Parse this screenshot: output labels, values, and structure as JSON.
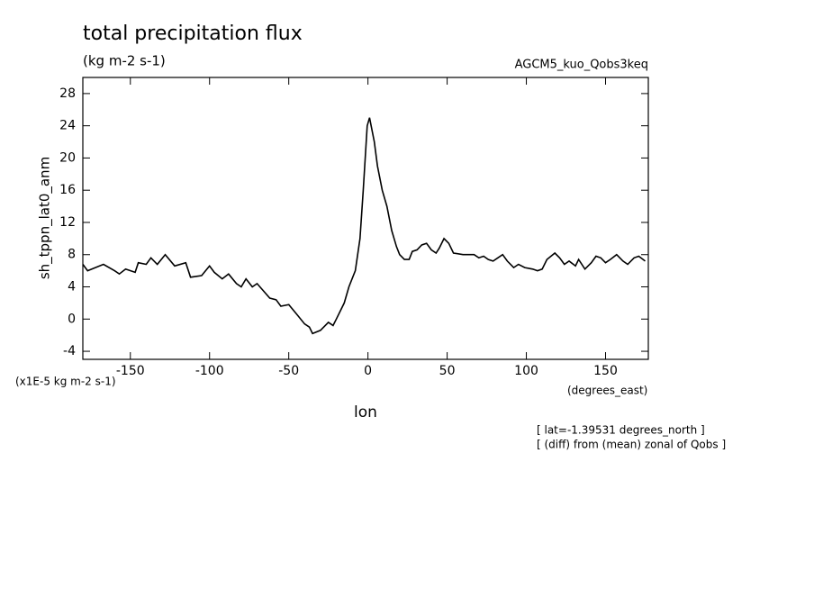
{
  "chart_data": {
    "type": "line",
    "title": "total precipitation flux",
    "subtitle": "(kg m-2 s-1)",
    "dataset": "AGCM5_kuo_Qobs3keq",
    "y_label": "sh_tppn_lat0_anm",
    "y_units": "(x1E-5 kg m-2 s-1)",
    "x_units": "(degrees_east)",
    "x_label": "lon",
    "notes": [
      "[ lat=-1.39531 degrees_north ]",
      "[ (diff) from (mean) zonal of Qobs ]"
    ],
    "xlim": [
      -180,
      177
    ],
    "ylim": [
      -5,
      30
    ],
    "xticks": [
      -150,
      -100,
      -50,
      0,
      50,
      100,
      150
    ],
    "yticks": [
      -4,
      0,
      4,
      8,
      12,
      16,
      20,
      24,
      28
    ],
    "color": "#000000",
    "x": [
      -180,
      -177,
      -167,
      -160,
      -157,
      -153,
      -147,
      -145,
      -140,
      -137,
      -133,
      -128,
      -122,
      -115,
      -112,
      -105,
      -100,
      -97,
      -92,
      -88,
      -83,
      -80,
      -77,
      -73,
      -70,
      -62,
      -58,
      -55,
      -50,
      -45,
      -40,
      -37,
      -35,
      -30,
      -25,
      -22,
      -20,
      -15,
      -12,
      -8,
      -5,
      -3,
      -0.5,
      1,
      4,
      6,
      9,
      12,
      15,
      18,
      20,
      23,
      26,
      28,
      31,
      34,
      37,
      40,
      43,
      45,
      48,
      51,
      54,
      60,
      67,
      70,
      73,
      76,
      79,
      82,
      85,
      88,
      92,
      95,
      99,
      104,
      107,
      110,
      113,
      118,
      121,
      124,
      127,
      131,
      133,
      137,
      141,
      144,
      147,
      150,
      153,
      157,
      161,
      164,
      168,
      171,
      175
    ],
    "values": [
      6.8,
      6.0,
      6.8,
      6.0,
      5.6,
      6.2,
      5.8,
      7.0,
      6.8,
      7.6,
      6.8,
      8.0,
      6.6,
      7.0,
      5.2,
      5.4,
      6.6,
      5.8,
      5.0,
      5.6,
      4.4,
      4.0,
      5.0,
      4.0,
      4.4,
      2.6,
      2.4,
      1.6,
      1.8,
      0.6,
      -0.6,
      -1.0,
      -1.8,
      -1.4,
      -0.4,
      -0.8,
      0.0,
      2.0,
      4.0,
      6.0,
      10.0,
      16.0,
      24.0,
      25.0,
      22.0,
      19.0,
      16.0,
      14.0,
      11.0,
      9.0,
      8.0,
      7.4,
      7.4,
      8.4,
      8.6,
      9.2,
      9.4,
      8.6,
      8.2,
      8.8,
      10.0,
      9.4,
      8.2,
      8.0,
      8.0,
      7.6,
      7.8,
      7.4,
      7.2,
      7.6,
      8.0,
      7.2,
      6.4,
      6.8,
      6.4,
      6.2,
      6.0,
      6.2,
      7.4,
      8.2,
      7.6,
      6.8,
      7.2,
      6.6,
      7.4,
      6.2,
      7.0,
      7.8,
      7.6,
      7.0,
      7.4,
      8.0,
      7.2,
      6.8,
      7.6,
      7.8,
      7.2
    ]
  }
}
